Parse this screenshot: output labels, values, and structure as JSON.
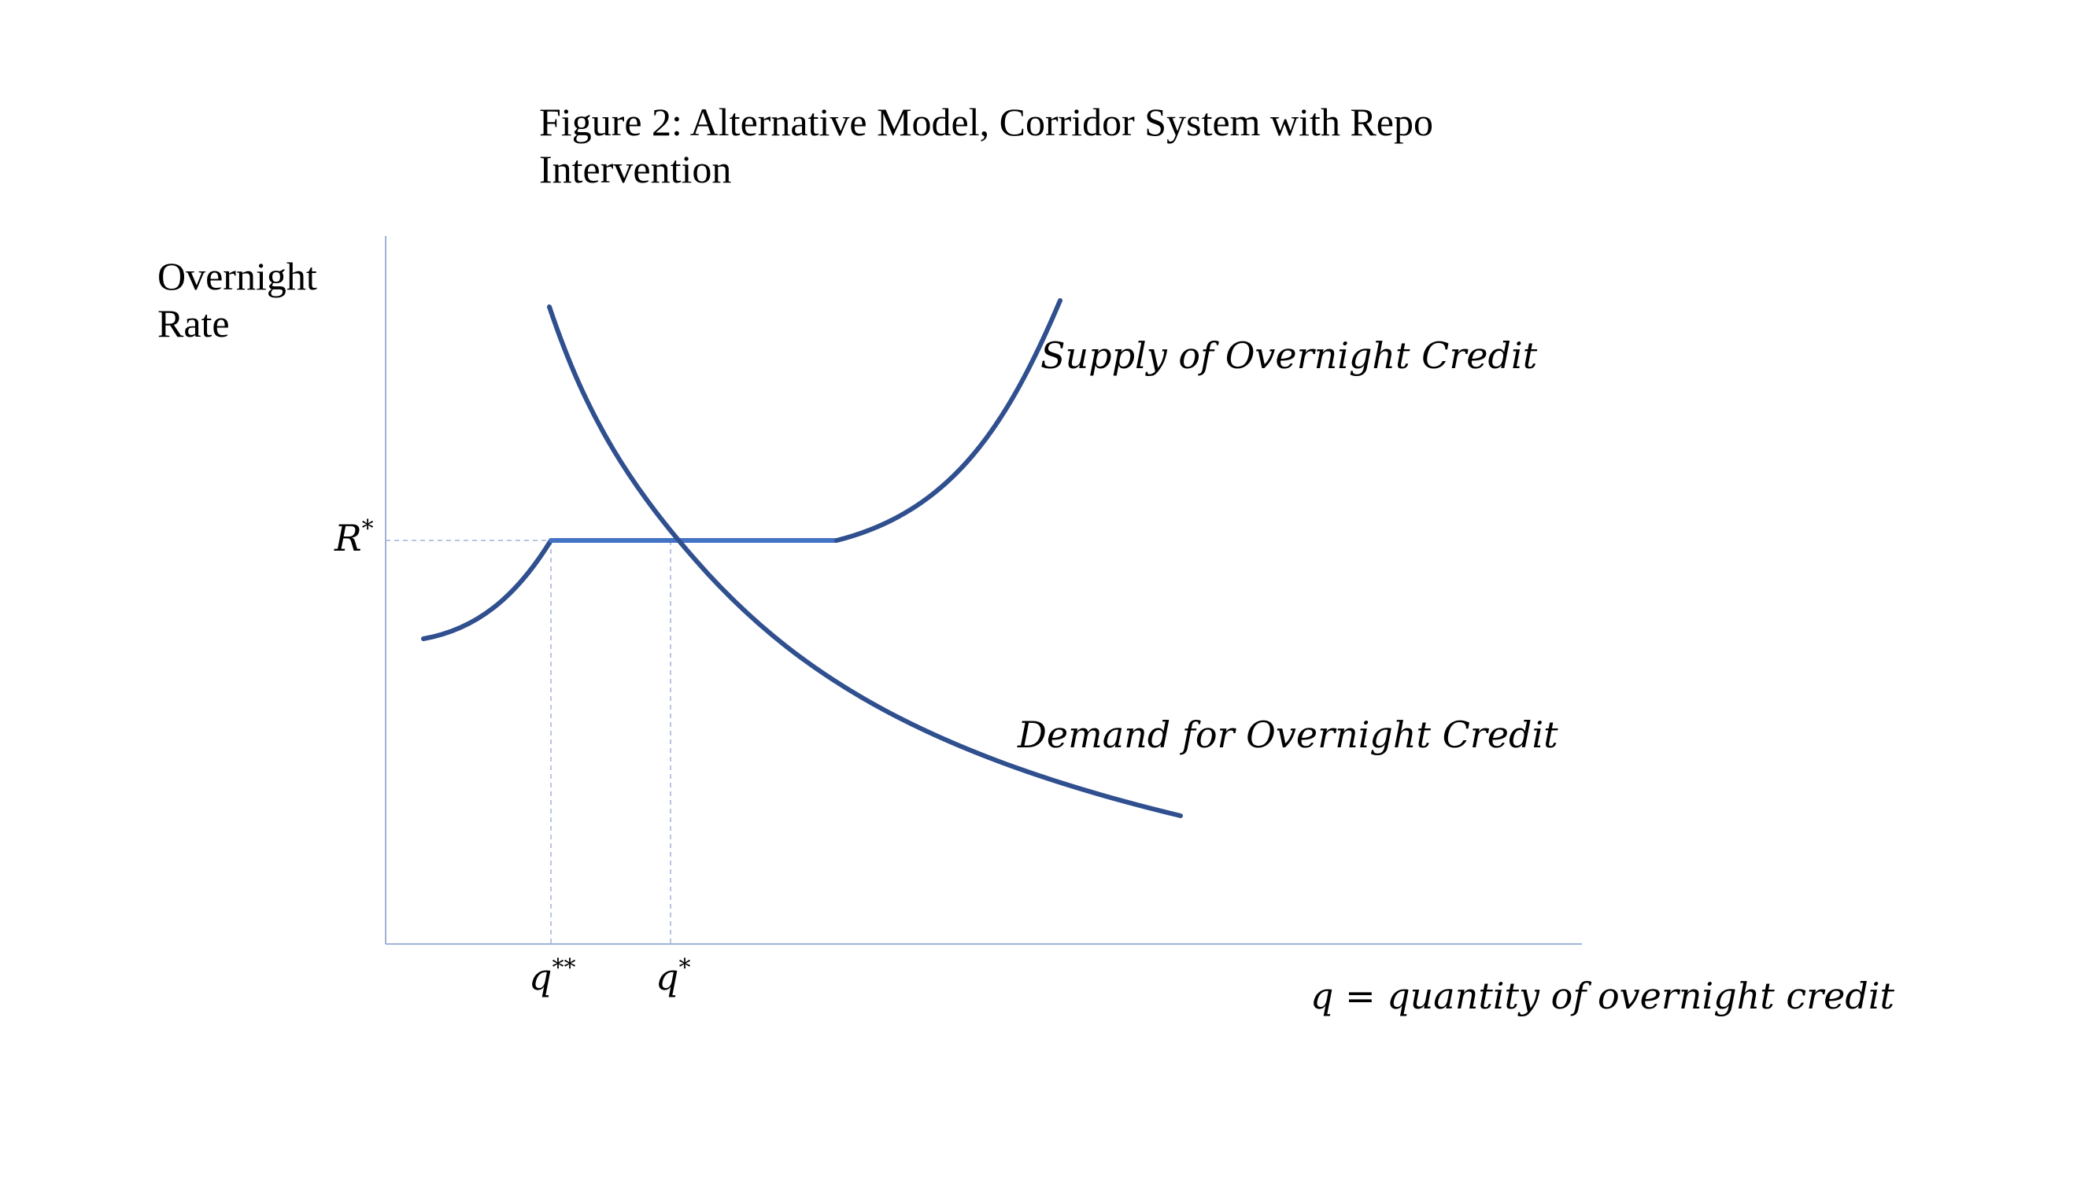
{
  "figure": {
    "title_line1": "Figure 2: Alternative Model, Corridor System with Repo",
    "title_line2": "Intervention"
  },
  "axes": {
    "y_title_line1": "Overnight",
    "y_title_line2": "Rate",
    "x_title": "q = quantity of overnight credit"
  },
  "labels": {
    "r_star_base": "R",
    "r_star_sup": "*",
    "q_double_star_base": "q",
    "q_double_star_sup": "**",
    "q_star_base": "q",
    "q_star_sup": "*"
  },
  "curves": {
    "supply_label": "Supply of Overnight Credit",
    "demand_label": "Demand for Overnight Credit"
  },
  "colors": {
    "curve": "#2f4f8f",
    "flat_segment": "#4472c4",
    "axis": "#9fb2d6",
    "guide": "#9fb2d6"
  }
}
